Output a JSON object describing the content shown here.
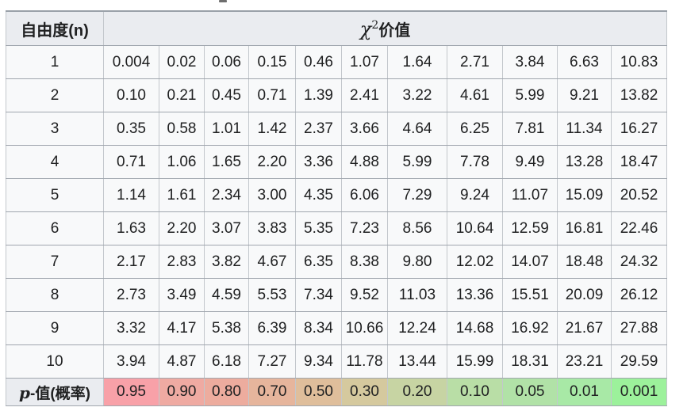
{
  "colors": {
    "header_bg": "#eaecf0",
    "cell_bg": "#f8f9fa",
    "border": "#a2a9b1",
    "text": "#202122"
  },
  "table": {
    "header": {
      "dof_label": "自由度(n)",
      "chi_symbol": "χ",
      "chi_exponent": "2",
      "chi_suffix": "价值"
    },
    "p_row": {
      "label_p": "p",
      "label_rest": "-值(概率)"
    }
  },
  "chart_data": {
    "type": "table",
    "title": "χ²价值",
    "row_header": "自由度(n)",
    "rows": [
      {
        "n": "1",
        "values": [
          "0.004",
          "0.02",
          "0.06",
          "0.15",
          "0.46",
          "1.07",
          "1.64",
          "2.71",
          "3.84",
          "6.63",
          "10.83"
        ]
      },
      {
        "n": "2",
        "values": [
          "0.10",
          "0.21",
          "0.45",
          "0.71",
          "1.39",
          "2.41",
          "3.22",
          "4.61",
          "5.99",
          "9.21",
          "13.82"
        ]
      },
      {
        "n": "3",
        "values": [
          "0.35",
          "0.58",
          "1.01",
          "1.42",
          "2.37",
          "3.66",
          "4.64",
          "6.25",
          "7.81",
          "11.34",
          "16.27"
        ]
      },
      {
        "n": "4",
        "values": [
          "0.71",
          "1.06",
          "1.65",
          "2.20",
          "3.36",
          "4.88",
          "5.99",
          "7.78",
          "9.49",
          "13.28",
          "18.47"
        ]
      },
      {
        "n": "5",
        "values": [
          "1.14",
          "1.61",
          "2.34",
          "3.00",
          "4.35",
          "6.06",
          "7.29",
          "9.24",
          "11.07",
          "15.09",
          "20.52"
        ]
      },
      {
        "n": "6",
        "values": [
          "1.63",
          "2.20",
          "3.07",
          "3.83",
          "5.35",
          "7.23",
          "8.56",
          "10.64",
          "12.59",
          "16.81",
          "22.46"
        ]
      },
      {
        "n": "7",
        "values": [
          "2.17",
          "2.83",
          "3.82",
          "4.67",
          "6.35",
          "8.38",
          "9.80",
          "12.02",
          "14.07",
          "18.48",
          "24.32"
        ]
      },
      {
        "n": "8",
        "values": [
          "2.73",
          "3.49",
          "4.59",
          "5.53",
          "7.34",
          "9.52",
          "11.03",
          "13.36",
          "15.51",
          "20.09",
          "26.12"
        ]
      },
      {
        "n": "9",
        "values": [
          "3.32",
          "4.17",
          "5.38",
          "6.39",
          "8.34",
          "10.66",
          "12.24",
          "14.68",
          "16.92",
          "21.67",
          "27.88"
        ]
      },
      {
        "n": "10",
        "values": [
          "3.94",
          "4.87",
          "6.18",
          "7.27",
          "9.34",
          "11.78",
          "13.44",
          "15.99",
          "18.31",
          "23.21",
          "29.59"
        ]
      }
    ],
    "p_values": [
      {
        "value": "0.95",
        "color": "#f8a1a8"
      },
      {
        "value": "0.90",
        "color": "#efaaa2"
      },
      {
        "value": "0.80",
        "color": "#edac9e"
      },
      {
        "value": "0.70",
        "color": "#e6b59c"
      },
      {
        "value": "0.50",
        "color": "#dfbe9b"
      },
      {
        "value": "0.30",
        "color": "#d5c99e"
      },
      {
        "value": "0.20",
        "color": "#c7d4a3"
      },
      {
        "value": "0.10",
        "color": "#b9dea6"
      },
      {
        "value": "0.05",
        "color": "#b1e2a7"
      },
      {
        "value": "0.01",
        "color": "#a8e9a6"
      },
      {
        "value": "0.001",
        "color": "#9cf19b"
      }
    ]
  }
}
